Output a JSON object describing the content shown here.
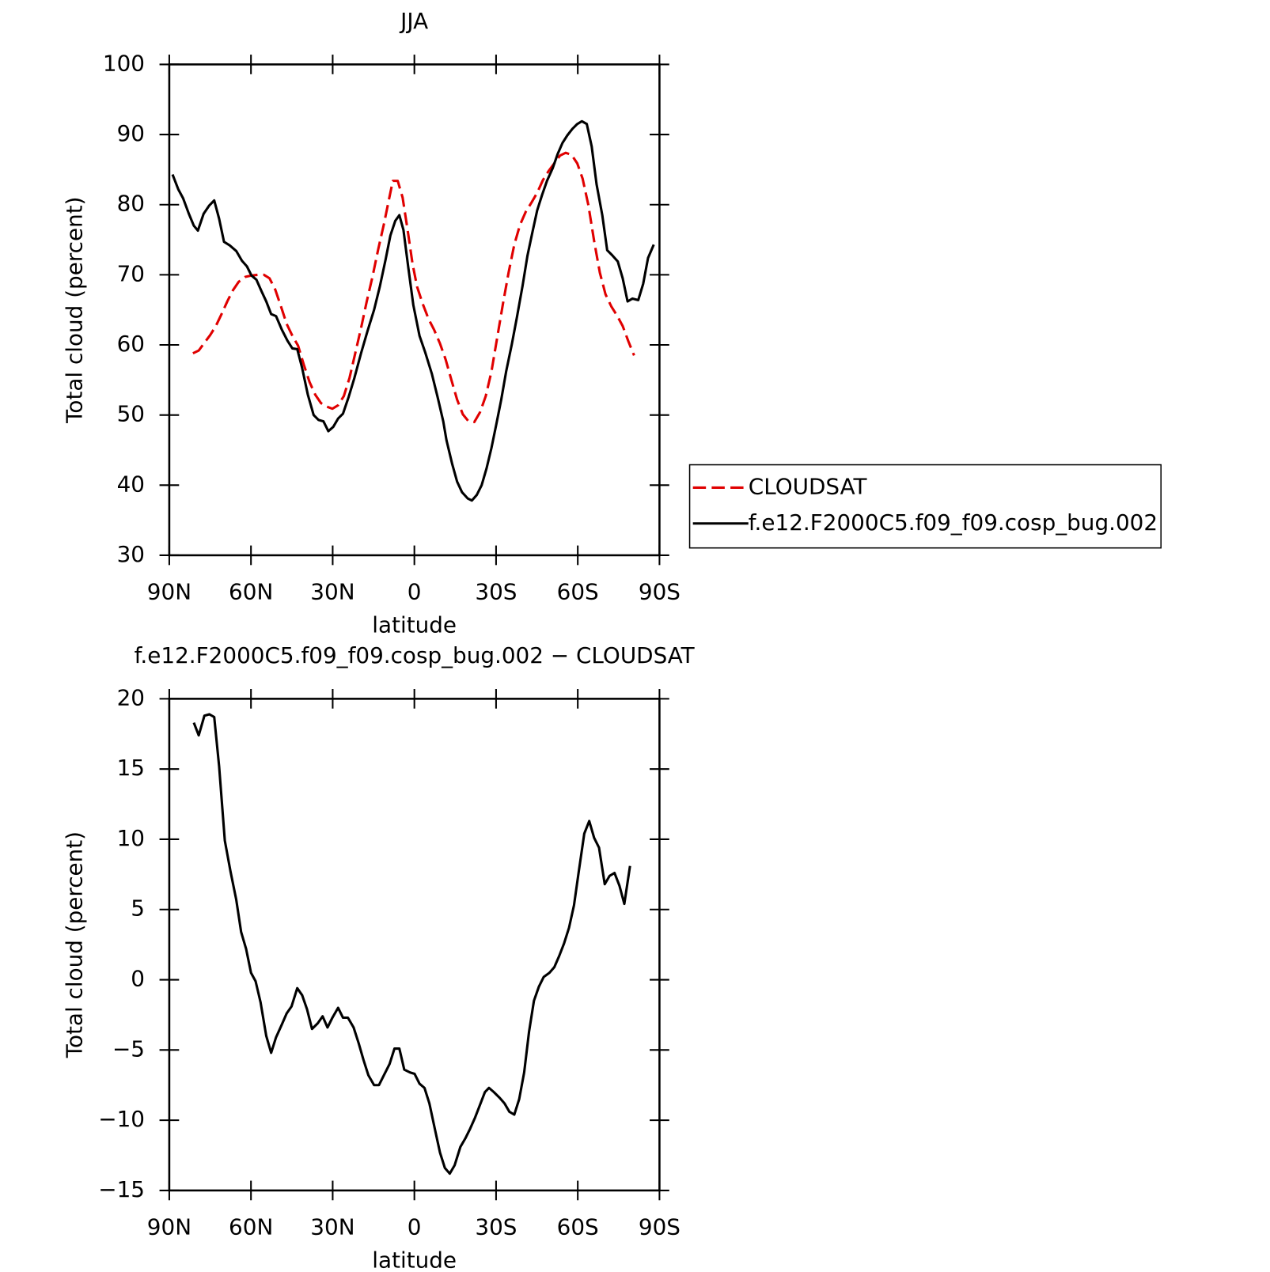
{
  "chart_data": [
    {
      "type": "line",
      "title": "JJA",
      "xlabel": "latitude",
      "ylabel": "Total cloud (percent)",
      "xlim": [
        90,
        -90
      ],
      "xticks": [
        {
          "value": 90,
          "label": "90N"
        },
        {
          "value": 60,
          "label": "60N"
        },
        {
          "value": 30,
          "label": "30N"
        },
        0,
        {
          "value": -30,
          "label": "30S"
        },
        {
          "value": -60,
          "label": "60S"
        },
        {
          "value": -90,
          "label": "90S"
        }
      ],
      "ylim": [
        30,
        100
      ],
      "yticks": [
        30,
        40,
        50,
        60,
        70,
        80,
        90,
        100
      ],
      "legend": "right",
      "series": [
        {
          "name": "CLOUDSAT",
          "color": "#e00000",
          "linestyle": "dashed",
          "x": [
            81.3,
            79.2,
            77.1,
            75.0,
            72.9,
            70.8,
            68.7,
            66.6,
            64.5,
            62.1,
            59.8,
            57.4,
            55.3,
            53.2,
            51.1,
            49.0,
            46.9,
            44.8,
            42.7,
            40.6,
            38.5,
            36.4,
            34.3,
            32.2,
            30.1,
            28.0,
            25.9,
            23.8,
            21.7,
            19.6,
            17.5,
            15.4,
            13.3,
            11.2,
            9.4,
            7.9,
            6.1,
            4.3,
            2.5,
            0.7,
            -1.0,
            -3.1,
            -5.2,
            -7.3,
            -9.4,
            -11.5,
            -13.6,
            -15.7,
            -17.8,
            -19.9,
            -22.0,
            -24.1,
            -26.2,
            -28.3,
            -30.4,
            -32.5,
            -34.6,
            -36.7,
            -38.8,
            -40.9,
            -43.0,
            -45.1,
            -47.2,
            -49.3,
            -51.4,
            -53.5,
            -55.6,
            -57.7,
            -59.8,
            -61.8,
            -63.9,
            -66.0,
            -68.1,
            -70.2,
            -72.3,
            -74.4,
            -76.5,
            -78.6,
            -80.7
          ],
          "values": [
            58.8,
            59.2,
            60.3,
            61.4,
            62.7,
            64.4,
            66.2,
            67.8,
            69.0,
            69.7,
            69.9,
            70.0,
            70.0,
            69.5,
            67.9,
            65.5,
            63.0,
            61.3,
            59.9,
            57.2,
            54.7,
            52.9,
            51.7,
            51.2,
            50.9,
            51.4,
            52.7,
            55.3,
            58.8,
            62.4,
            66.2,
            69.7,
            73.6,
            77.2,
            80.6,
            83.4,
            83.4,
            81.0,
            76.4,
            71.6,
            68.3,
            65.8,
            63.7,
            62.1,
            60.2,
            57.9,
            55.0,
            52.2,
            50.1,
            49.1,
            49.0,
            50.4,
            52.7,
            56.2,
            61.0,
            65.8,
            70.3,
            74.3,
            77.1,
            79.0,
            80.3,
            81.7,
            83.5,
            84.8,
            85.9,
            87.0,
            87.4,
            87.1,
            85.9,
            83.7,
            79.9,
            74.8,
            70.3,
            67.2,
            65.5,
            64.2,
            62.7,
            60.5,
            58.5
          ]
        },
        {
          "name": "f.e12.F2000C5.f09_f09.cosp_bug.002",
          "color": "#000000",
          "linestyle": "solid",
          "x": [
            88.8,
            86.7,
            84.9,
            82.8,
            81.0,
            79.5,
            77.4,
            75.3,
            73.5,
            71.7,
            69.9,
            67.8,
            65.4,
            63.3,
            61.5,
            59.8,
            58.0,
            56.2,
            54.4,
            52.6,
            50.8,
            48.7,
            46.6,
            44.8,
            43.0,
            41.2,
            39.1,
            37.0,
            35.2,
            33.4,
            31.6,
            29.8,
            28.0,
            26.2,
            24.1,
            22.0,
            19.6,
            17.2,
            14.8,
            12.7,
            10.6,
            8.8,
            7.0,
            5.5,
            4.0,
            2.2,
            0.4,
            -1.9,
            -4.0,
            -6.4,
            -8.5,
            -10.6,
            -11.8,
            -13.9,
            -15.7,
            -17.5,
            -19.6,
            -21.1,
            -22.9,
            -24.7,
            -26.5,
            -28.3,
            -30.1,
            -31.9,
            -33.7,
            -35.8,
            -37.6,
            -39.7,
            -41.5,
            -43.3,
            -45.1,
            -46.9,
            -48.7,
            -50.8,
            -52.6,
            -54.4,
            -56.2,
            -58.0,
            -59.8,
            -61.5,
            -63.3,
            -65.1,
            -66.9,
            -69.0,
            -70.8,
            -72.6,
            -74.7,
            -76.5,
            -78.3,
            -80.1,
            -82.2,
            -84.0,
            -85.8,
            -87.9
          ],
          "values": [
            84.3,
            82.2,
            80.9,
            78.7,
            77.0,
            76.3,
            78.7,
            79.9,
            80.6,
            78.0,
            74.7,
            74.2,
            73.4,
            72.0,
            71.2,
            69.9,
            69.3,
            67.7,
            66.2,
            64.4,
            64.1,
            62.2,
            60.6,
            59.5,
            59.4,
            56.7,
            52.9,
            50.0,
            49.3,
            49.1,
            47.7,
            48.3,
            49.5,
            50.2,
            52.6,
            55.3,
            58.8,
            62.0,
            65.0,
            68.3,
            72.1,
            75.6,
            77.7,
            78.5,
            76.4,
            70.9,
            65.7,
            61.3,
            58.9,
            55.9,
            52.6,
            49.1,
            46.4,
            43.0,
            40.5,
            39.0,
            38.1,
            37.8,
            38.6,
            40.0,
            42.4,
            45.3,
            48.7,
            52.2,
            56.2,
            60.1,
            63.8,
            68.4,
            72.7,
            76.0,
            79.2,
            81.4,
            83.4,
            85.2,
            87.2,
            88.8,
            89.9,
            90.8,
            91.5,
            91.9,
            91.5,
            88.3,
            82.9,
            78.5,
            73.5,
            72.8,
            71.9,
            69.5,
            66.2,
            66.6,
            66.4,
            68.7,
            72.4,
            74.3
          ]
        }
      ]
    },
    {
      "type": "line",
      "title": "f.e12.F2000C5.f09_f09.cosp_bug.002 − CLOUDSAT",
      "xlabel": "latitude",
      "ylabel": "Total cloud (percent)",
      "xlim": [
        90,
        -90
      ],
      "xticks": [
        {
          "value": 90,
          "label": "90N"
        },
        {
          "value": 60,
          "label": "60N"
        },
        {
          "value": 30,
          "label": "30N"
        },
        0,
        {
          "value": -30,
          "label": "30S"
        },
        {
          "value": -60,
          "label": "60S"
        },
        {
          "value": -90,
          "label": "90S"
        }
      ],
      "ylim": [
        -15,
        20
      ],
      "yticks": [
        {
          "value": -15,
          "label": "−15"
        },
        {
          "value": -10,
          "label": "−10"
        },
        {
          "value": -5,
          "label": "−5"
        },
        0,
        5,
        10,
        15,
        20
      ],
      "series": [
        {
          "color": "#000000",
          "linestyle": "solid",
          "x": [
            81.0,
            79.2,
            77.1,
            75.3,
            73.5,
            71.7,
            69.6,
            67.5,
            65.4,
            63.6,
            61.8,
            60.0,
            58.3,
            56.5,
            54.4,
            52.6,
            50.8,
            48.7,
            46.9,
            45.1,
            43.0,
            41.2,
            39.4,
            37.6,
            35.5,
            33.7,
            31.9,
            30.1,
            28.0,
            26.2,
            24.4,
            22.3,
            20.5,
            18.7,
            16.9,
            14.8,
            13.0,
            11.2,
            9.1,
            7.3,
            5.5,
            3.7,
            1.6,
            -0.1,
            -1.9,
            -3.7,
            -5.5,
            -7.6,
            -9.4,
            -11.2,
            -13.0,
            -14.8,
            -16.9,
            -18.7,
            -20.5,
            -22.3,
            -24.1,
            -25.9,
            -27.4,
            -29.2,
            -31.3,
            -33.1,
            -34.9,
            -36.7,
            -38.5,
            -40.3,
            -42.1,
            -43.9,
            -45.7,
            -47.5,
            -49.6,
            -51.4,
            -53.2,
            -55.0,
            -56.8,
            -58.6,
            -60.3,
            -62.4,
            -64.2,
            -66.0,
            -67.8,
            -69.9,
            -71.7,
            -73.5,
            -75.3,
            -77.1,
            -79.2
          ],
          "values": [
            18.3,
            17.4,
            18.8,
            18.9,
            18.7,
            15.2,
            9.9,
            7.7,
            5.7,
            3.4,
            2.2,
            0.5,
            -0.1,
            -1.6,
            -4.0,
            -5.2,
            -4.1,
            -3.2,
            -2.4,
            -1.9,
            -0.6,
            -1.1,
            -2.1,
            -3.5,
            -3.1,
            -2.6,
            -3.4,
            -2.7,
            -2.0,
            -2.7,
            -2.7,
            -3.4,
            -4.5,
            -5.7,
            -6.8,
            -7.5,
            -7.5,
            -6.8,
            -6.0,
            -4.9,
            -4.9,
            -6.4,
            -6.6,
            -6.7,
            -7.4,
            -7.7,
            -8.8,
            -10.7,
            -12.3,
            -13.4,
            -13.8,
            -13.2,
            -11.9,
            -11.3,
            -10.6,
            -9.8,
            -8.9,
            -8.0,
            -7.7,
            -8.0,
            -8.4,
            -8.8,
            -9.4,
            -9.6,
            -8.5,
            -6.6,
            -3.7,
            -1.5,
            -0.5,
            0.2,
            0.5,
            0.9,
            1.7,
            2.6,
            3.7,
            5.3,
            7.6,
            10.4,
            11.3,
            10.1,
            9.4,
            6.8,
            7.4,
            7.6,
            6.7,
            5.4,
            8.1
          ]
        }
      ]
    }
  ]
}
